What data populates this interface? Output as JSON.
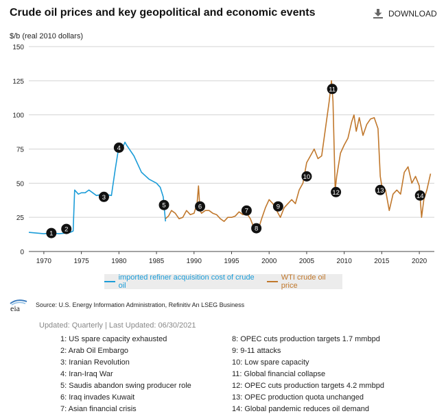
{
  "header": {
    "title": "Crude oil prices and key geopolitical and economic events",
    "download_label": "DOWNLOAD"
  },
  "chart_data": {
    "type": "line",
    "ylabel": "$/b (real 2010 dollars)",
    "xlim": [
      1968,
      2022
    ],
    "ylim": [
      0,
      150
    ],
    "yticks": [
      0,
      25,
      50,
      75,
      100,
      125,
      150
    ],
    "xticks": [
      1970,
      1975,
      1980,
      1985,
      1990,
      1995,
      2000,
      2005,
      2010,
      2015,
      2020
    ],
    "grid": "horizontal",
    "legend_position": "bottom",
    "series": [
      {
        "name": "imported refiner acquisition cost of crude oil",
        "color": "#1a9cd8",
        "x": [
          1968,
          1969,
          1970,
          1971,
          1972,
          1973,
          1973.5,
          1973.9,
          1974.1,
          1974.6,
          1975,
          1975.5,
          1976,
          1977,
          1978,
          1979,
          1979.5,
          1980,
          1980.5,
          1980.8,
          1981,
          1982,
          1983,
          1984,
          1985,
          1985.5,
          1985.9,
          1986.2
        ],
        "y": [
          14,
          13.5,
          13,
          13.5,
          13,
          13.5,
          14,
          15,
          45,
          42,
          43,
          43,
          45,
          41,
          42,
          41,
          60,
          77,
          76,
          80,
          78,
          70,
          58,
          53,
          50,
          47,
          40,
          22
        ]
      },
      {
        "name": "WTI crude oil price",
        "color": "#c0772b",
        "x": [
          1986.2,
          1986.6,
          1987,
          1987.5,
          1988,
          1988.5,
          1989,
          1989.5,
          1990,
          1990.4,
          1990.6,
          1990.8,
          1991,
          1991.5,
          1992,
          1992.5,
          1993,
          1993.5,
          1994,
          1994.5,
          1995,
          1995.5,
          1996,
          1996.5,
          1997,
          1997.5,
          1998,
          1998.5,
          1999,
          1999.5,
          2000,
          2000.5,
          2001,
          2001.5,
          2002,
          2002.5,
          2003,
          2003.5,
          2004,
          2004.5,
          2005,
          2005.5,
          2006,
          2006.5,
          2007,
          2007.5,
          2008,
          2008.3,
          2008.5,
          2008.8,
          2009,
          2009.5,
          2010,
          2010.5,
          2011,
          2011.3,
          2011.6,
          2012,
          2012.5,
          2013,
          2013.5,
          2014,
          2014.5,
          2014.8,
          2015,
          2015.5,
          2016,
          2016.5,
          2017,
          2017.5,
          2018,
          2018.5,
          2019,
          2019.5,
          2020,
          2020.3,
          2020.6,
          2021,
          2021.5
        ],
        "y": [
          24,
          26,
          30,
          28,
          24,
          25,
          30,
          27,
          28,
          35,
          48,
          30,
          28,
          30,
          30,
          28,
          27,
          24,
          22,
          25,
          25,
          26,
          29,
          27,
          28,
          24,
          17,
          15,
          24,
          32,
          38,
          35,
          30,
          25,
          32,
          35,
          38,
          35,
          45,
          50,
          65,
          70,
          75,
          68,
          70,
          90,
          110,
          125,
          110,
          45,
          55,
          72,
          78,
          83,
          95,
          100,
          88,
          98,
          85,
          93,
          97,
          98,
          90,
          55,
          48,
          45,
          30,
          42,
          45,
          42,
          58,
          62,
          50,
          55,
          48,
          25,
          38,
          45,
          57
        ]
      }
    ],
    "event_markers": [
      {
        "label": "1",
        "x": 1971,
        "y": 13.5
      },
      {
        "label": "2",
        "x": 1973,
        "y": 16.5
      },
      {
        "label": "3",
        "x": 1978,
        "y": 40
      },
      {
        "label": "4",
        "x": 1980,
        "y": 76
      },
      {
        "label": "5",
        "x": 1986,
        "y": 34
      },
      {
        "label": "6",
        "x": 1990.8,
        "y": 33
      },
      {
        "label": "7",
        "x": 1997,
        "y": 30
      },
      {
        "label": "8",
        "x": 1998.3,
        "y": 17
      },
      {
        "label": "9",
        "x": 2001.2,
        "y": 33
      },
      {
        "label": "10",
        "x": 2005,
        "y": 55
      },
      {
        "label": "11",
        "x": 2008.4,
        "y": 119
      },
      {
        "label": "12",
        "x": 2008.9,
        "y": 43.5
      },
      {
        "label": "13",
        "x": 2014.8,
        "y": 45
      },
      {
        "label": "14",
        "x": 2020.1,
        "y": 41
      }
    ]
  },
  "source_text": "Source: U.S. Energy Information Administration, Refinitiv An LSEG Business",
  "updated_text": "Updated: Quarterly | Last Updated: 06/30/2021",
  "events_left": [
    "1: US spare capacity exhausted",
    "2: Arab Oil Embargo",
    "3: Iranian Revolution",
    "4: Iran-Iraq War",
    "5: Saudis abandon swing producer role",
    "6: Iraq invades Kuwait",
    "7: Asian financial crisis"
  ],
  "events_right": [
    "8: OPEC cuts production targets 1.7 mmbpd",
    "9: 9-11 attacks",
    "10: Low spare capacity",
    "11: Global financial collapse",
    "12: OPEC cuts production targets 4.2 mmbpd",
    "13: OPEC production quota unchanged",
    "14: Global pandemic reduces oil demand"
  ],
  "logo_text": "eia"
}
